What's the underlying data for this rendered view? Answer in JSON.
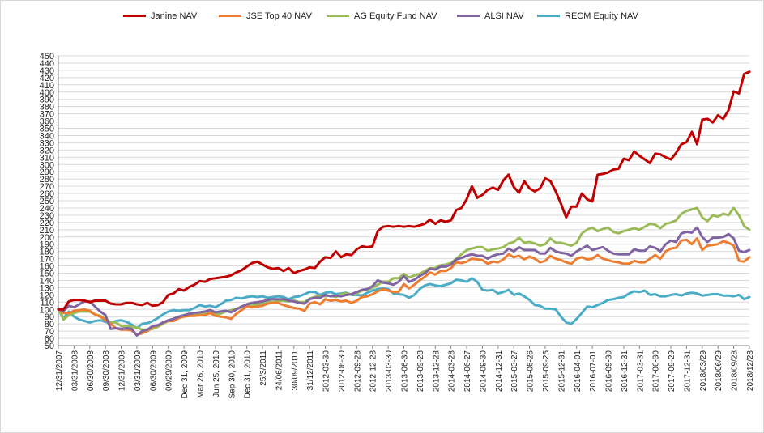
{
  "chart_data": {
    "type": "line",
    "title": "",
    "xlabel": "",
    "ylabel": "",
    "ylim": [
      50,
      450
    ],
    "y_ticks": [
      50,
      60,
      70,
      80,
      90,
      100,
      110,
      120,
      130,
      140,
      150,
      160,
      170,
      180,
      190,
      200,
      210,
      220,
      230,
      240,
      250,
      260,
      270,
      280,
      290,
      300,
      310,
      320,
      330,
      340,
      350,
      360,
      370,
      380,
      390,
      400,
      410,
      420,
      430,
      440,
      450
    ],
    "grid": true,
    "legend_position": "top",
    "x_ticks": [
      {
        "label": "12/31/2007",
        "i": 0
      },
      {
        "label": "03/31/2008",
        "i": 3
      },
      {
        "label": "06/30/2008",
        "i": 6
      },
      {
        "label": "09/30/2008",
        "i": 9
      },
      {
        "label": "12/31/2008",
        "i": 12
      },
      {
        "label": "03/31/2009",
        "i": 15
      },
      {
        "label": "06/30/2009",
        "i": 18
      },
      {
        "label": "09/29/2009",
        "i": 21
      },
      {
        "label": "Dec 31, 2009",
        "i": 24
      },
      {
        "label": "Mar 26, 2010",
        "i": 27
      },
      {
        "label": "Jun 25, 2010",
        "i": 30
      },
      {
        "label": "Sep 30, 2010",
        "i": 33
      },
      {
        "label": "Dec 31, 2010",
        "i": 36
      },
      {
        "label": "25/3/2011",
        "i": 39
      },
      {
        "label": "24/06/2011",
        "i": 42
      },
      {
        "label": "30/09/2011",
        "i": 45
      },
      {
        "label": "31/12/2011",
        "i": 48
      },
      {
        "label": "2012-03-30",
        "i": 51
      },
      {
        "label": "2012-06-30",
        "i": 54
      },
      {
        "label": "2012-09-28",
        "i": 57
      },
      {
        "label": "2012-12-28",
        "i": 60
      },
      {
        "label": "2013-03-30",
        "i": 63
      },
      {
        "label": "2013-06-30",
        "i": 66
      },
      {
        "label": "2013-09-28",
        "i": 69
      },
      {
        "label": "2013-12-28",
        "i": 72
      },
      {
        "label": "2014-03-28",
        "i": 75
      },
      {
        "label": "2014-06-27",
        "i": 78
      },
      {
        "label": "2014-09-30",
        "i": 81
      },
      {
        "label": "2014-12-31",
        "i": 84
      },
      {
        "label": "2015-03-27",
        "i": 87
      },
      {
        "label": "2015-06-26",
        "i": 90
      },
      {
        "label": "2015-09-25",
        "i": 93
      },
      {
        "label": "2015-12-31",
        "i": 96
      },
      {
        "label": "2016-04-01",
        "i": 99
      },
      {
        "label": "2016-07-01",
        "i": 102
      },
      {
        "label": "2016-09-30",
        "i": 105
      },
      {
        "label": "2016-12-31",
        "i": 108
      },
      {
        "label": "2017-03-31",
        "i": 111
      },
      {
        "label": "2017-06-30",
        "i": 114
      },
      {
        "label": "2017-09-29",
        "i": 117
      },
      {
        "label": "2017-12-31",
        "i": 120
      },
      {
        "label": "2018/03/29",
        "i": 123
      },
      {
        "label": "2018/06/29",
        "i": 126
      },
      {
        "label": "2018/09/28",
        "i": 129
      },
      {
        "label": "2018/12/28",
        "i": 132
      }
    ],
    "series": [
      {
        "name": "Janine NAV",
        "color": "#c00000",
        "values": [
          100,
          100,
          111,
          113,
          113,
          112,
          110,
          112,
          112,
          112,
          108,
          107,
          107,
          109,
          109,
          107,
          106,
          109,
          105,
          106,
          110,
          120,
          122,
          128,
          126,
          131,
          134,
          139,
          138,
          142,
          143,
          144,
          145,
          147,
          151,
          154,
          159,
          164,
          166,
          162,
          158,
          156,
          157,
          153,
          157,
          150,
          153,
          155,
          158,
          157,
          166,
          172,
          171,
          180,
          172,
          176,
          175,
          183,
          187,
          186,
          187,
          208,
          214,
          215,
          214,
          215,
          214,
          215,
          214,
          216,
          218,
          224,
          218,
          223,
          221,
          223,
          237,
          240,
          252,
          270,
          254,
          258,
          265,
          268,
          265,
          278,
          286,
          269,
          261,
          277,
          267,
          263,
          267,
          281,
          277,
          263,
          246,
          227,
          242,
          242,
          260,
          252,
          249,
          286,
          287,
          289,
          293,
          294,
          308,
          306,
          318,
          312,
          307,
          302,
          315,
          314,
          310,
          307,
          316,
          328,
          331,
          345,
          328,
          362,
          363,
          358,
          368,
          363,
          375,
          401,
          398,
          425,
          428
        ]
      },
      {
        "name": "JSE Top 40 NAV",
        "color": "#ed7d31",
        "values": [
          100,
          95,
          95,
          98,
          99,
          100,
          98,
          93,
          90,
          85,
          80,
          74,
          72,
          72,
          71,
          65,
          67,
          70,
          76,
          78,
          82,
          84,
          84,
          88,
          90,
          91,
          91,
          92,
          92,
          95,
          91,
          90,
          89,
          87,
          94,
          99,
          104,
          103,
          104,
          105,
          108,
          109,
          109,
          106,
          104,
          102,
          101,
          98,
          108,
          110,
          107,
          114,
          112,
          113,
          111,
          112,
          109,
          112,
          117,
          118,
          121,
          125,
          128,
          126,
          124,
          124,
          135,
          129,
          134,
          140,
          145,
          151,
          148,
          153,
          153,
          157,
          165,
          164,
          166,
          170,
          169,
          168,
          163,
          166,
          165,
          169,
          176,
          172,
          174,
          169,
          173,
          170,
          165,
          167,
          174,
          170,
          168,
          165,
          163,
          170,
          172,
          169,
          170,
          175,
          170,
          168,
          166,
          165,
          163,
          163,
          167,
          165,
          165,
          170,
          175,
          170,
          180,
          184,
          185,
          195,
          196,
          190,
          198,
          182,
          188,
          189,
          190,
          194,
          192,
          188,
          167,
          166,
          172
        ]
      },
      {
        "name": "AG Equity Fund NAV",
        "color": "#9bbb59",
        "values": [
          100,
          86,
          92,
          95,
          97,
          97,
          97,
          93,
          91,
          87,
          82,
          82,
          77,
          77,
          76,
          75,
          72,
          72,
          73,
          76,
          80,
          84,
          87,
          89,
          91,
          91,
          93,
          94,
          94,
          95,
          93,
          94,
          97,
          99,
          101,
          103,
          105,
          105,
          107,
          108,
          110,
          110,
          112,
          112,
          111,
          112,
          110,
          110,
          115,
          117,
          119,
          118,
          119,
          117,
          121,
          122,
          121,
          122,
          126,
          127,
          130,
          134,
          138,
          138,
          143,
          143,
          149,
          144,
          147,
          149,
          153,
          157,
          157,
          161,
          162,
          164,
          170,
          176,
          182,
          184,
          186,
          186,
          181,
          183,
          184,
          186,
          191,
          193,
          199,
          192,
          193,
          191,
          188,
          190,
          198,
          192,
          192,
          190,
          188,
          192,
          205,
          210,
          213,
          208,
          211,
          213,
          207,
          205,
          208,
          210,
          212,
          210,
          214,
          218,
          217,
          212,
          218,
          220,
          223,
          232,
          236,
          238,
          240,
          227,
          222,
          230,
          228,
          232,
          230,
          240,
          230,
          215,
          210
        ]
      },
      {
        "name": "ALSI NAV",
        "color": "#8064a2",
        "values": [
          100,
          98,
          105,
          103,
          107,
          111,
          111,
          104,
          97,
          92,
          73,
          74,
          73,
          74,
          73,
          64,
          70,
          72,
          77,
          78,
          82,
          85,
          87,
          90,
          92,
          94,
          95,
          96,
          97,
          99,
          96,
          97,
          98,
          96,
          100,
          104,
          107,
          109,
          110,
          111,
          113,
          114,
          114,
          114,
          112,
          111,
          109,
          108,
          114,
          116,
          116,
          120,
          118,
          119,
          118,
          120,
          121,
          124,
          127,
          128,
          132,
          140,
          137,
          136,
          134,
          138,
          146,
          138,
          141,
          146,
          150,
          156,
          155,
          159,
          159,
          162,
          169,
          171,
          174,
          176,
          174,
          174,
          170,
          174,
          176,
          177,
          184,
          180,
          186,
          182,
          182,
          182,
          177,
          177,
          185,
          180,
          178,
          177,
          174,
          180,
          184,
          188,
          182,
          184,
          186,
          181,
          177,
          176,
          176,
          176,
          183,
          181,
          181,
          187,
          185,
          180,
          190,
          195,
          193,
          205,
          207,
          206,
          213,
          200,
          193,
          199,
          199,
          200,
          204,
          198,
          181,
          179,
          182
        ]
      },
      {
        "name": "RECM Equity  NAV",
        "color": "#4bacc6",
        "values": [
          100,
          88,
          97,
          90,
          86,
          84,
          82,
          84,
          85,
          83,
          81,
          84,
          85,
          83,
          79,
          74,
          80,
          81,
          84,
          88,
          93,
          97,
          99,
          98,
          99,
          99,
          102,
          106,
          104,
          105,
          103,
          107,
          112,
          113,
          116,
          115,
          117,
          118,
          117,
          118,
          116,
          117,
          118,
          117,
          114,
          117,
          118,
          121,
          124,
          124,
          120,
          123,
          124,
          121,
          122,
          123,
          120,
          120,
          119,
          123,
          126,
          128,
          129,
          128,
          122,
          121,
          120,
          116,
          120,
          128,
          133,
          135,
          133,
          132,
          134,
          136,
          141,
          140,
          138,
          143,
          138,
          127,
          126,
          127,
          122,
          124,
          127,
          120,
          122,
          118,
          113,
          106,
          105,
          101,
          101,
          100,
          90,
          82,
          80,
          87,
          95,
          104,
          103,
          106,
          109,
          113,
          114,
          116,
          117,
          122,
          125,
          124,
          126,
          120,
          121,
          118,
          118,
          120,
          121,
          119,
          122,
          123,
          122,
          119,
          120,
          121,
          121,
          119,
          119,
          118,
          120,
          114,
          117
        ]
      }
    ]
  }
}
